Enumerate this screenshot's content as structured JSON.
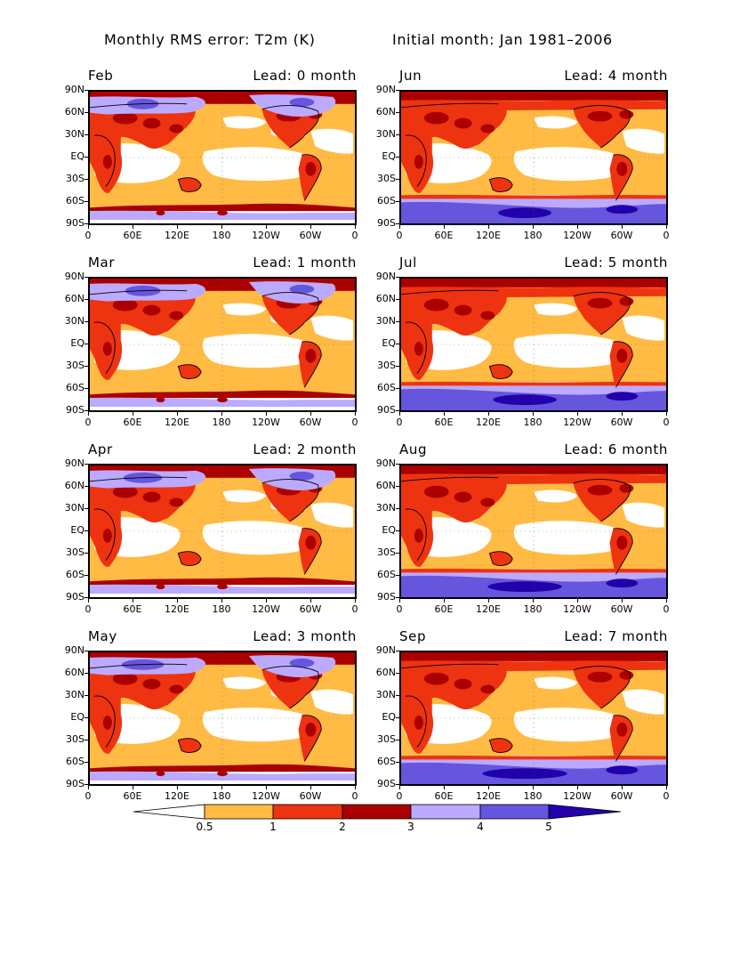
{
  "header": {
    "title_left": "Monthly RMS error: T2m (K)",
    "title_right": "Initial month: Jan 1981–2006"
  },
  "axes": {
    "lat_labels": [
      "90N",
      "60N",
      "30N",
      "EQ",
      "30S",
      "60S",
      "90S"
    ],
    "lon_labels": [
      "0",
      "60E",
      "120E",
      "180",
      "120W",
      "60W",
      "0"
    ]
  },
  "panels": [
    {
      "month": "Feb",
      "lead": "Lead: 0 month"
    },
    {
      "month": "Jun",
      "lead": "Lead: 4 month"
    },
    {
      "month": "Mar",
      "lead": "Lead: 1 month"
    },
    {
      "month": "Jul",
      "lead": "Lead: 5 month"
    },
    {
      "month": "Apr",
      "lead": "Lead: 2 month"
    },
    {
      "month": "Aug",
      "lead": "Lead: 6 month"
    },
    {
      "month": "May",
      "lead": "Lead: 3 month"
    },
    {
      "month": "Sep",
      "lead": "Lead: 7 month"
    }
  ],
  "colorbar": {
    "labels": [
      "0.5",
      "1",
      "2",
      "3",
      "4",
      "5"
    ],
    "colors": [
      "#ffffff",
      "#ffbb44",
      "#ee3311",
      "#aa0000",
      "#bbaaff",
      "#6655dd",
      "#2200aa"
    ]
  }
}
